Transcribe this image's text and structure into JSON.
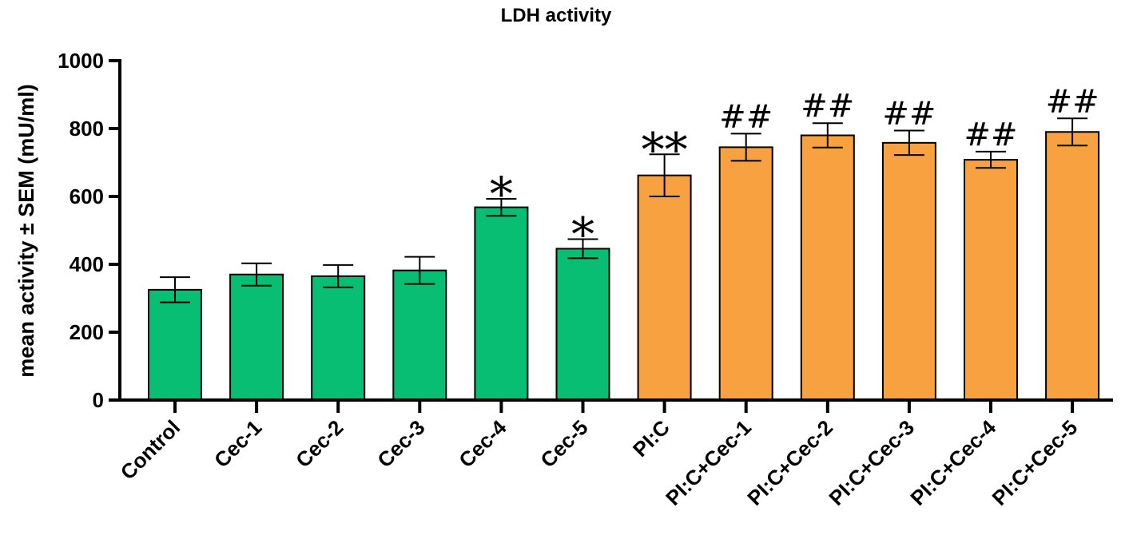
{
  "chart_data": {
    "type": "bar",
    "title": "LDH activity",
    "xlabel": "",
    "ylabel": "mean activity ± SEM (mU/ml)",
    "ylim": [
      0,
      1000
    ],
    "yticks": [
      0,
      200,
      400,
      600,
      800,
      1000
    ],
    "categories": [
      "Control",
      "Cec-1",
      "Cec-2",
      "Cec-3",
      "Cec-4",
      "Cec-5",
      "PI:C",
      "PI:C+Cec-1",
      "PI:C+Cec-2",
      "PI:C+Cec-3",
      "PI:C+Cec-4",
      "PI:C+Cec-5"
    ],
    "values": [
      325,
      370,
      365,
      382,
      568,
      446,
      662,
      745,
      780,
      758,
      708,
      790
    ],
    "sem": [
      37,
      33,
      33,
      40,
      25,
      28,
      62,
      40,
      36,
      36,
      24,
      40
    ],
    "annotations": [
      "",
      "",
      "",
      "",
      "*",
      "*",
      "**",
      "##",
      "##",
      "##",
      "##",
      "##"
    ],
    "colors": [
      "#08be73",
      "#08be73",
      "#08be73",
      "#08be73",
      "#08be73",
      "#08be73",
      "#f8a140",
      "#f8a140",
      "#f8a140",
      "#f8a140",
      "#f8a140",
      "#f8a140"
    ],
    "grid": false,
    "legend": "none"
  }
}
